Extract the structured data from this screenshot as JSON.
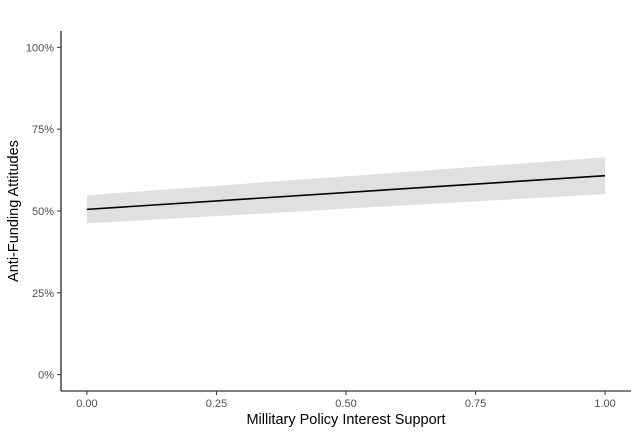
{
  "chart_data": {
    "type": "line",
    "title": "",
    "xlabel": "Millitary Policy Interest Support",
    "ylabel": "Anti-Funding Attitudes",
    "xlim": [
      -0.05,
      1.05
    ],
    "ylim": [
      -0.05,
      1.05
    ],
    "x_ticks": [
      0,
      0.25,
      0.5,
      0.75,
      1
    ],
    "x_tick_labels": [
      "0.00",
      "0.25",
      "0.50",
      "0.75",
      "1.00"
    ],
    "y_ticks": [
      0,
      0.25,
      0.5,
      0.75,
      1
    ],
    "y_tick_labels": [
      "0%",
      "25%",
      "50%",
      "75%",
      "100%"
    ],
    "grid": false,
    "series": [
      {
        "x": [
          0,
          1
        ],
        "y": [
          0.505,
          0.608
        ],
        "ci_lower": [
          0.462,
          0.552
        ],
        "ci_upper": [
          0.548,
          0.664
        ],
        "color": "#000000",
        "ribbon_color": "#e0e0e0"
      }
    ]
  }
}
